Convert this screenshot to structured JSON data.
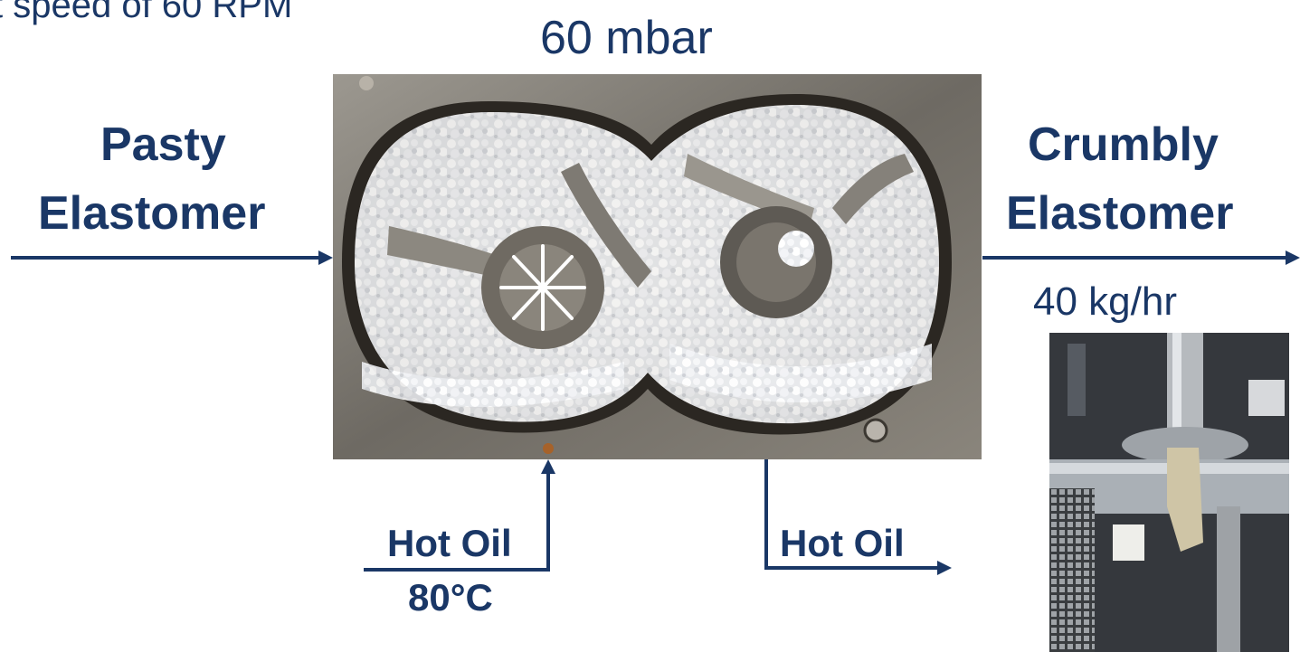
{
  "header": {
    "top_text": "t speed of 60 RPM",
    "pressure": "60 mbar"
  },
  "input": {
    "line1": "Pasty",
    "line2": "Elastomer"
  },
  "output": {
    "line1": "Crumbly",
    "line2": "Elastomer",
    "rate": "40 kg/hr"
  },
  "hot_oil_in": {
    "label": "Hot Oil",
    "temperature": "80°C"
  },
  "hot_oil_out": {
    "label": "Hot Oil"
  },
  "colors": {
    "text_navy": "#1a3766",
    "arrow": "#1a3766"
  }
}
